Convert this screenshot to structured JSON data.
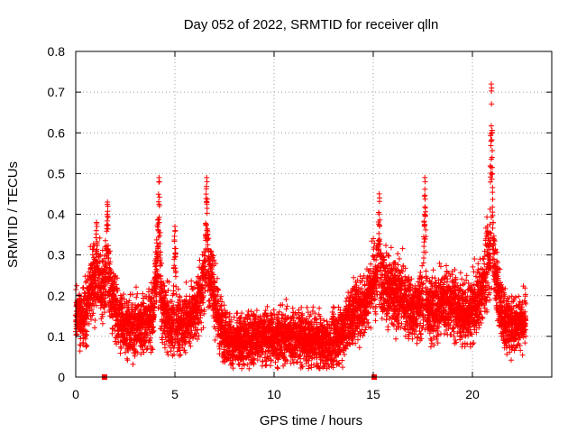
{
  "chart_data": {
    "type": "scatter",
    "title": "Day 052 of 2022, SRMTID for receiver qlln",
    "xlabel": "GPS time / hours",
    "ylabel": "SRMTID / TECUs",
    "xlim": [
      0,
      24
    ],
    "ylim": [
      0,
      0.8
    ],
    "x_ticks": [
      0,
      5,
      10,
      15,
      20
    ],
    "x_tick_labels": [
      "0",
      "5",
      "10",
      "15",
      "20"
    ],
    "y_ticks": [
      0,
      0.1,
      0.2,
      0.3,
      0.4,
      0.5,
      0.6,
      0.7,
      0.8
    ],
    "y_tick_labels": [
      "0",
      "0.1",
      "0.2",
      "0.3",
      "0.4",
      "0.5",
      "0.6",
      "0.7",
      "0.8"
    ],
    "grid": true,
    "marker": "+",
    "color": "#ff0000",
    "series": [
      {
        "name": "SRMTID",
        "sampling_interval_hours": 0.0083,
        "x_start": 0.0,
        "x_end": 22.7,
        "envelope_x": [
          0.0,
          0.5,
          0.9,
          1.2,
          1.6,
          2.2,
          2.8,
          3.4,
          3.9,
          4.1,
          4.3,
          4.7,
          5.1,
          5.6,
          6.0,
          6.5,
          6.8,
          7.2,
          7.5,
          8.0,
          9.0,
          10.0,
          11.0,
          12.0,
          12.8,
          13.4,
          14.0,
          14.6,
          15.0,
          15.5,
          16.0,
          16.5,
          17.0,
          17.6,
          18.0,
          18.6,
          19.2,
          19.8,
          20.4,
          20.8,
          21.0,
          21.3,
          21.7,
          22.0,
          22.7
        ],
        "envelope_y": [
          0.15,
          0.16,
          0.24,
          0.22,
          0.24,
          0.14,
          0.12,
          0.13,
          0.15,
          0.3,
          0.18,
          0.13,
          0.12,
          0.14,
          0.16,
          0.24,
          0.26,
          0.14,
          0.11,
          0.08,
          0.1,
          0.1,
          0.1,
          0.09,
          0.08,
          0.11,
          0.16,
          0.18,
          0.24,
          0.23,
          0.2,
          0.2,
          0.16,
          0.19,
          0.16,
          0.19,
          0.17,
          0.15,
          0.2,
          0.28,
          0.33,
          0.2,
          0.13,
          0.13,
          0.14
        ],
        "spikes": [
          {
            "x": 1.05,
            "y": 0.38
          },
          {
            "x": 1.6,
            "y": 0.43
          },
          {
            "x": 4.2,
            "y": 0.49
          },
          {
            "x": 5.0,
            "y": 0.37
          },
          {
            "x": 6.6,
            "y": 0.49
          },
          {
            "x": 15.3,
            "y": 0.45
          },
          {
            "x": 17.6,
            "y": 0.49
          },
          {
            "x": 20.95,
            "y": 0.72
          }
        ],
        "zero_markers_x": [
          1.45,
          15.05
        ]
      }
    ]
  }
}
